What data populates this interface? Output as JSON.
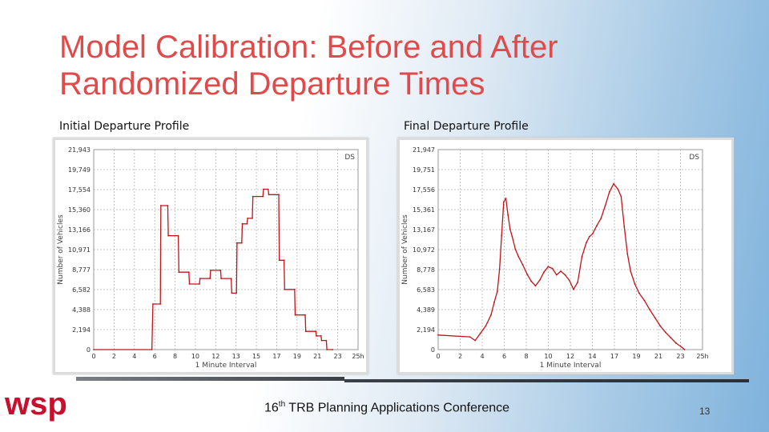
{
  "slide": {
    "title_line1": "Model Calibration: Before and After",
    "title_line2": "Randomized Departure Times",
    "footer_prefix": "16",
    "footer_sup": "th",
    "footer_rest": " TRB Planning Applications Conference",
    "page_number": "13",
    "logo_text": "wsp",
    "accent_color": "#e04a4a",
    "line_color": "#c0141a"
  },
  "chart_data": [
    {
      "type": "line",
      "subtitle": "Initial Departure Profile",
      "ylabel": "Number of Vehicles",
      "xlabel": "1 Minute Interval",
      "legend": "DS",
      "legend_position": "top-right",
      "ylim": [
        0,
        21943
      ],
      "xlim": [
        0,
        25
      ],
      "grid": true,
      "y_ticks": [
        "21,943",
        "19,749",
        "17,554",
        "15,360",
        "13,166",
        "10,971",
        "8,777",
        "6,582",
        "4,388",
        "2,194",
        "0"
      ],
      "x_ticks": [
        "0",
        "2",
        "4",
        "6",
        "8",
        "10",
        "12",
        "13",
        "15",
        "17",
        "19",
        "21",
        "23",
        "25h"
      ],
      "series": [
        {
          "name": "DS",
          "x": [
            0,
            5.5,
            5.6,
            6.3,
            6.35,
            7.0,
            7.05,
            8.0,
            8.05,
            9.0,
            9.05,
            10.0,
            10.05,
            11.0,
            11.05,
            12.0,
            12.05,
            13.0,
            13.05,
            13.5,
            13.55,
            14.0,
            14.05,
            14.5,
            14.55,
            15.0,
            15.05,
            16.0,
            16.05,
            16.5,
            16.55,
            17.5,
            17.55,
            18.0,
            18.05,
            19.0,
            19.05,
            20.0,
            20.05,
            21.0,
            21.05,
            21.5,
            21.55,
            22.0,
            22.05,
            22.6
          ],
          "y": [
            0,
            0,
            5000,
            5000,
            15800,
            15800,
            12500,
            12500,
            8500,
            8500,
            7200,
            7200,
            7800,
            7800,
            8700,
            8700,
            7800,
            7800,
            6200,
            6200,
            11700,
            11700,
            13800,
            13800,
            14400,
            14400,
            16800,
            16800,
            17600,
            17600,
            17000,
            17000,
            9800,
            9800,
            6600,
            6600,
            3800,
            3800,
            2000,
            2000,
            1500,
            1500,
            1000,
            1000,
            0,
            0
          ]
        }
      ]
    },
    {
      "type": "line",
      "subtitle": "Final Departure Profile",
      "ylabel": "Number of Vehicles",
      "xlabel": "1 Minute Interval",
      "legend": "DS",
      "legend_position": "top-right",
      "ylim": [
        0,
        21947
      ],
      "xlim": [
        0,
        25
      ],
      "grid": true,
      "y_ticks": [
        "21,947",
        "19,751",
        "17,556",
        "15,361",
        "13,167",
        "10,972",
        "8,778",
        "6,583",
        "4,389",
        "2,194",
        "0"
      ],
      "x_ticks": [
        "0",
        "2",
        "4",
        "6",
        "8",
        "10",
        "12",
        "14",
        "17",
        "19",
        "21",
        "23",
        "25h"
      ],
      "series": [
        {
          "name": "DS",
          "x": [
            0,
            3.0,
            3.5,
            4.0,
            4.5,
            5.0,
            5.3,
            5.6,
            5.8,
            6.0,
            6.2,
            6.4,
            6.6,
            6.8,
            7.0,
            7.3,
            7.6,
            8.0,
            8.4,
            8.8,
            9.2,
            9.6,
            10.0,
            10.4,
            10.8,
            11.2,
            11.6,
            12.0,
            12.4,
            12.8,
            13.2,
            13.6,
            14.0,
            14.3,
            14.6,
            15.0,
            15.4,
            15.8,
            16.2,
            16.6,
            17.0,
            17.3,
            17.6,
            17.9,
            18.2,
            18.6,
            19.0,
            19.5,
            20.0,
            20.5,
            21.0,
            21.5,
            22.0,
            22.5,
            23.0,
            23.3
          ],
          "y": [
            1600,
            1400,
            1000,
            1800,
            2600,
            3800,
            5200,
            6400,
            8800,
            12500,
            16200,
            16600,
            14800,
            13200,
            12400,
            11000,
            10200,
            9300,
            8300,
            7500,
            7000,
            7600,
            8500,
            9100,
            8900,
            8200,
            8600,
            8200,
            7600,
            6600,
            7400,
            10200,
            11700,
            12400,
            12700,
            13600,
            14400,
            15800,
            17300,
            18200,
            17600,
            16800,
            13500,
            10500,
            8600,
            7200,
            6200,
            5400,
            4400,
            3500,
            2600,
            1900,
            1300,
            700,
            300,
            0
          ]
        }
      ]
    }
  ]
}
